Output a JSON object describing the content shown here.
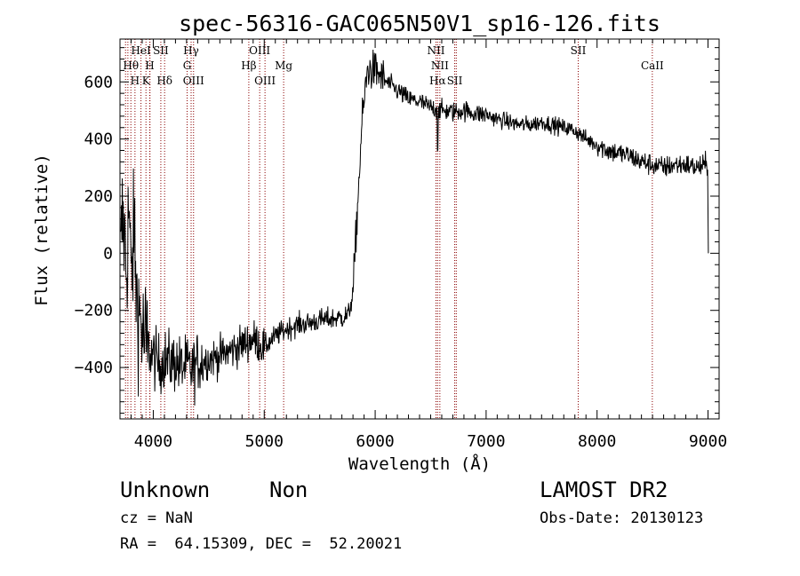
{
  "chart_data": {
    "type": "line",
    "title": "spec-56316-GAC065N50V1_sp16-126.fits",
    "xlabel": "Wavelength (Å)",
    "ylabel": "Flux (relative)",
    "xlim": [
      3700,
      9100
    ],
    "ylim": [
      -580,
      750
    ],
    "x_ticks": [
      4000,
      5000,
      6000,
      7000,
      8000,
      9000
    ],
    "y_ticks": [
      -400,
      -200,
      0,
      200,
      400,
      600
    ],
    "grid": false,
    "line_color": "#000000",
    "marker_color": "#8b0000",
    "spectrum_profile": [
      [
        3700,
        -100
      ],
      [
        3720,
        120
      ],
      [
        3740,
        60
      ],
      [
        3760,
        -60
      ],
      [
        3780,
        180
      ],
      [
        3800,
        -100
      ],
      [
        3830,
        80
      ],
      [
        3850,
        -160
      ],
      [
        3880,
        -220
      ],
      [
        3910,
        -300
      ],
      [
        3950,
        -330
      ],
      [
        4000,
        -360
      ],
      [
        4050,
        -390
      ],
      [
        4100,
        -370
      ],
      [
        4150,
        -380
      ],
      [
        4200,
        -380
      ],
      [
        4250,
        -400
      ],
      [
        4300,
        -395
      ],
      [
        4350,
        -410
      ],
      [
        4400,
        -380
      ],
      [
        4500,
        -370
      ],
      [
        4600,
        -360
      ],
      [
        4700,
        -340
      ],
      [
        4800,
        -320
      ],
      [
        4900,
        -300
      ],
      [
        5000,
        -330
      ],
      [
        5100,
        -290
      ],
      [
        5200,
        -265
      ],
      [
        5300,
        -250
      ],
      [
        5400,
        -245
      ],
      [
        5500,
        -235
      ],
      [
        5600,
        -230
      ],
      [
        5700,
        -225
      ],
      [
        5760,
        -215
      ],
      [
        5800,
        -140
      ],
      [
        5830,
        80
      ],
      [
        5860,
        300
      ],
      [
        5880,
        450
      ],
      [
        5900,
        530
      ],
      [
        5930,
        640
      ],
      [
        6000,
        640
      ],
      [
        6100,
        600
      ],
      [
        6200,
        570
      ],
      [
        6300,
        540
      ],
      [
        6400,
        530
      ],
      [
        6500,
        510
      ],
      [
        6600,
        500
      ],
      [
        6700,
        495
      ],
      [
        6800,
        500
      ],
      [
        6900,
        490
      ],
      [
        7000,
        485
      ],
      [
        7100,
        470
      ],
      [
        7200,
        460
      ],
      [
        7300,
        450
      ],
      [
        7400,
        450
      ],
      [
        7500,
        460
      ],
      [
        7600,
        450
      ],
      [
        7700,
        440
      ],
      [
        7800,
        430
      ],
      [
        7900,
        400
      ],
      [
        8000,
        380
      ],
      [
        8100,
        360
      ],
      [
        8200,
        350
      ],
      [
        8300,
        340
      ],
      [
        8400,
        320
      ],
      [
        8500,
        310
      ],
      [
        8600,
        300
      ],
      [
        8700,
        310
      ],
      [
        8800,
        310
      ],
      [
        8900,
        300
      ],
      [
        9000,
        310
      ]
    ],
    "line_markers": [
      {
        "label": "HeI",
        "x": 3889,
        "row": 1
      },
      {
        "label": "SII",
        "x": 4068,
        "row": 1
      },
      {
        "label": "Hγ",
        "x": 4341,
        "row": 1
      },
      {
        "label": "OIII",
        "x": 4959,
        "row": 1
      },
      {
        "label": "NII",
        "x": 6548,
        "row": 1
      },
      {
        "label": "SII",
        "x": 7830,
        "row": 1
      },
      {
        "label": "Hθ",
        "x": 3798,
        "row": 2
      },
      {
        "label": "H",
        "x": 3968,
        "row": 2
      },
      {
        "label": "G",
        "x": 4305,
        "row": 2
      },
      {
        "label": "Hβ",
        "x": 4861,
        "row": 2
      },
      {
        "label": "Mg",
        "x": 5175,
        "row": 2
      },
      {
        "label": "NII",
        "x": 6583,
        "row": 2
      },
      {
        "label": "CaII",
        "x": 8498,
        "row": 2
      },
      {
        "label": "H",
        "x": 3835,
        "row": 3
      },
      {
        "label": "K",
        "x": 3934,
        "row": 3
      },
      {
        "label": "Hδ",
        "x": 4102,
        "row": 3
      },
      {
        "label": "OIII",
        "x": 4363,
        "row": 3
      },
      {
        "label": "OIII",
        "x": 5007,
        "row": 3
      },
      {
        "label": "Hα",
        "x": 6563,
        "row": 3
      },
      {
        "label": "SII",
        "x": 6717,
        "row": 3
      }
    ],
    "extra_marker_lines": [
      3750,
      3771,
      3970,
      6731
    ]
  },
  "info": {
    "class_label": "Unknown",
    "subclass_label": "Non",
    "redshift": "cz = NaN",
    "coordinates": "RA =  64.15309, DEC =  52.20021",
    "survey": "LAMOST DR2",
    "obs_date": "Obs-Date: 20130123"
  }
}
